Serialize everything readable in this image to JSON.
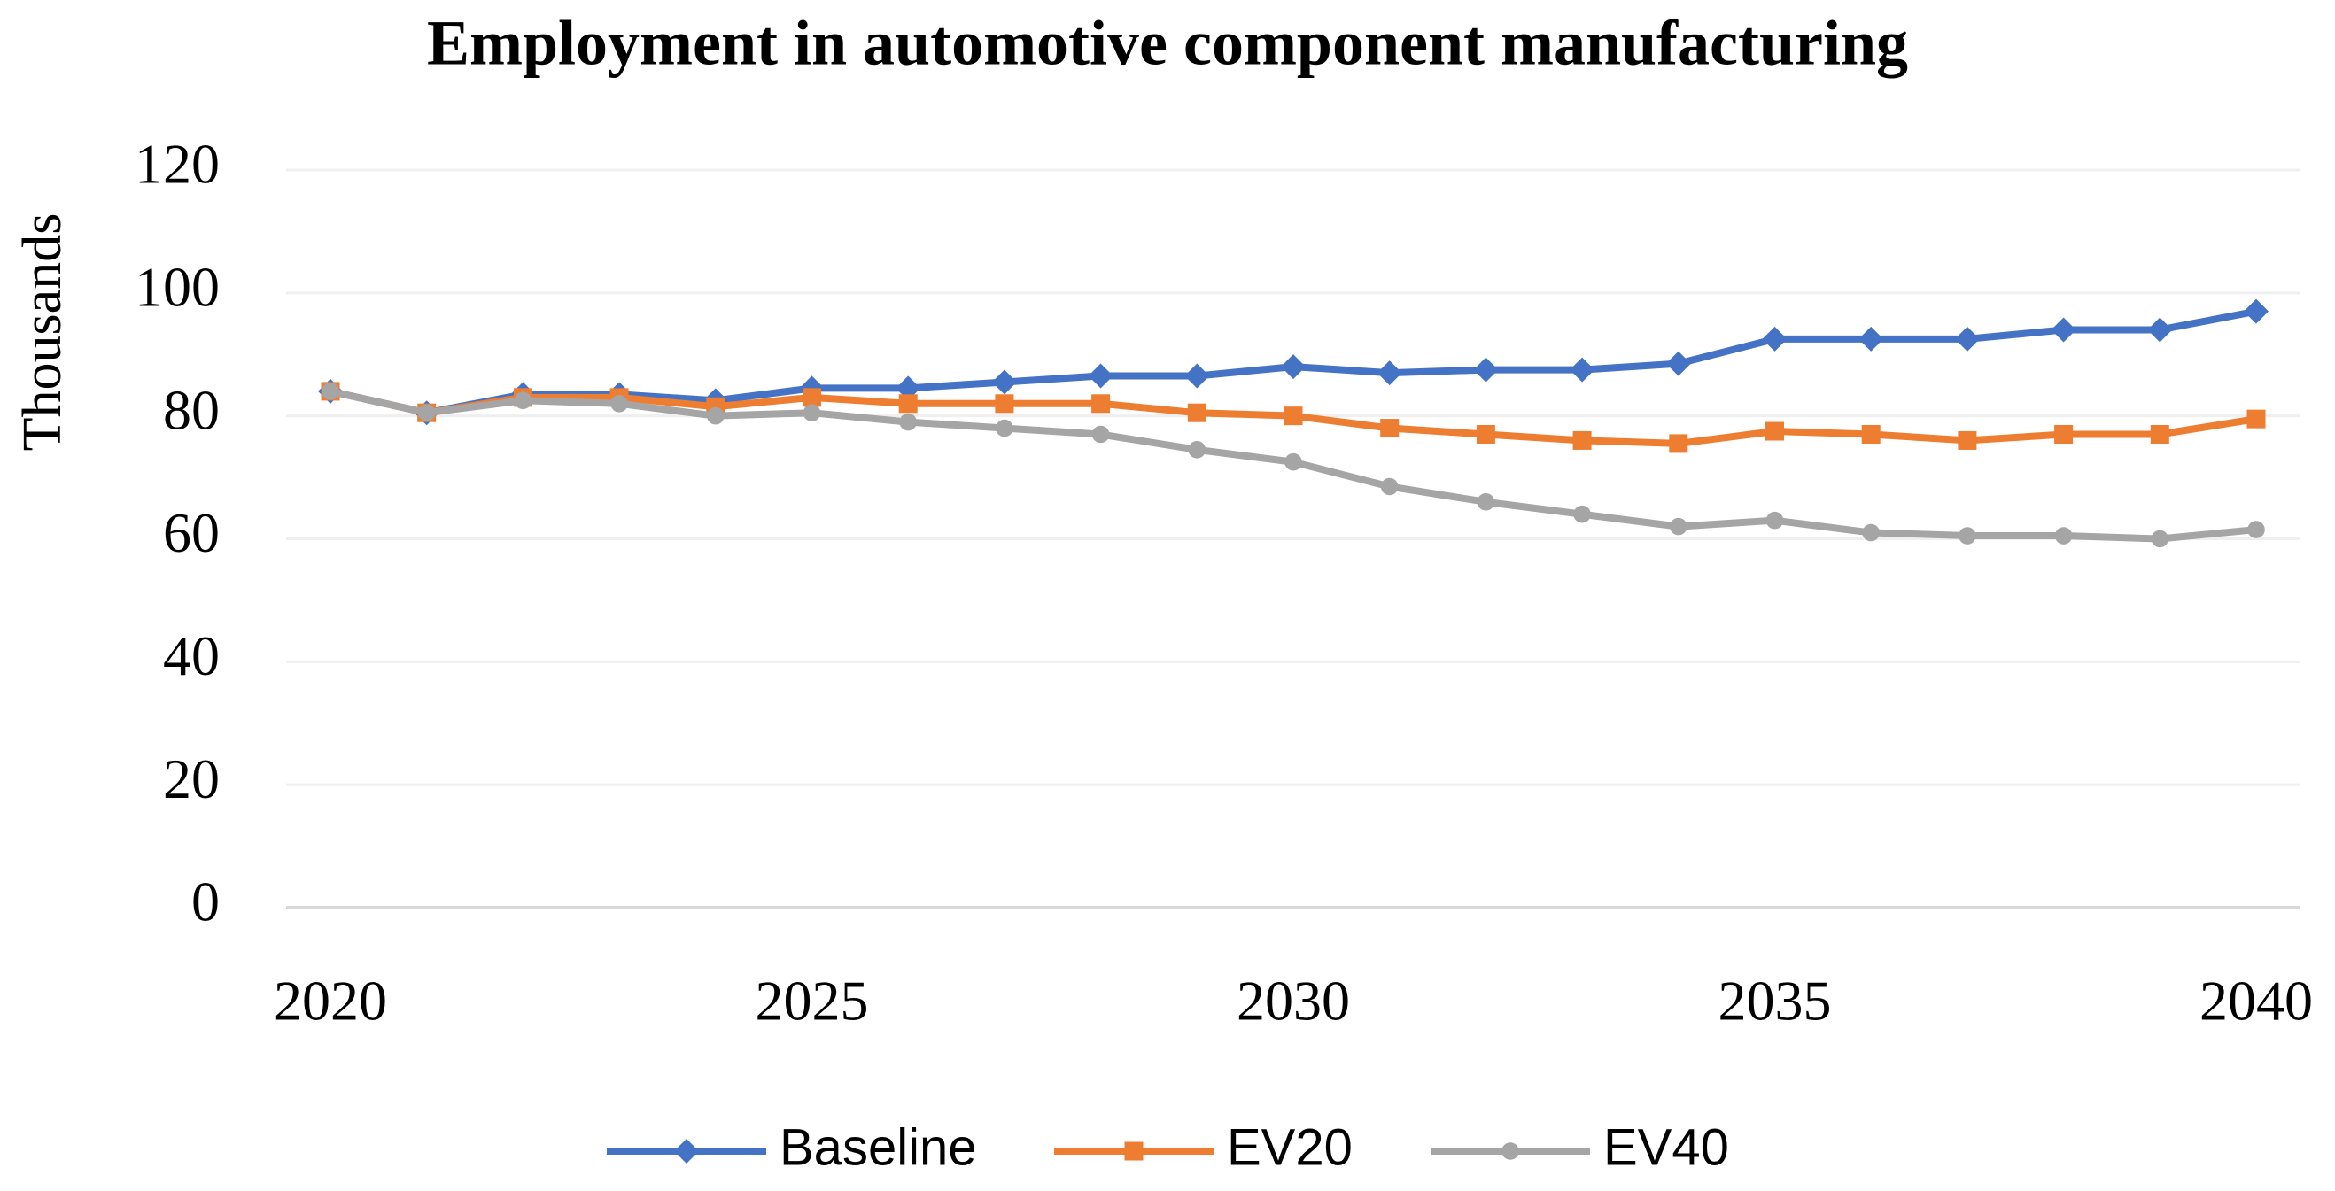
{
  "chart_data": {
    "type": "line",
    "title": "Employment in automotive component manufacturing",
    "y_label": "Thousands",
    "x": [
      2020,
      2021,
      2022,
      2023,
      2024,
      2025,
      2026,
      2027,
      2028,
      2029,
      2030,
      2031,
      2032,
      2033,
      2034,
      2035,
      2036,
      2037,
      2038,
      2039,
      2040
    ],
    "series": [
      {
        "name": "Baseline",
        "color": "#4472c4",
        "marker": "diamond",
        "values": [
          84,
          80.5,
          83.5,
          83.5,
          82.5,
          84.5,
          84.5,
          85.5,
          86.5,
          86.5,
          88,
          87,
          87.5,
          87.5,
          88.5,
          92.5,
          92.5,
          92.5,
          94,
          94,
          97
        ]
      },
      {
        "name": "EV20",
        "color": "#ed7d31",
        "marker": "square",
        "values": [
          84,
          80.5,
          83,
          83,
          81.5,
          83,
          82,
          82,
          82,
          80.5,
          80,
          78,
          77,
          76,
          75.5,
          77.5,
          77,
          76,
          77,
          77,
          79.5
        ]
      },
      {
        "name": "EV40",
        "color": "#a5a5a5",
        "marker": "circle",
        "values": [
          84,
          80.5,
          82.5,
          82,
          80,
          80.5,
          79,
          78,
          77,
          74.5,
          72.5,
          68.5,
          66,
          64,
          62,
          63,
          61,
          60.5,
          60.5,
          60,
          61.5
        ]
      }
    ],
    "xlim": [
      2020,
      2040
    ],
    "xticks": [
      2020,
      2025,
      2030,
      2035,
      2040
    ],
    "ylim": [
      0,
      120
    ],
    "yticks": [
      0,
      20,
      40,
      60,
      80,
      100,
      120
    ],
    "grid": true,
    "legend": "bottom"
  }
}
